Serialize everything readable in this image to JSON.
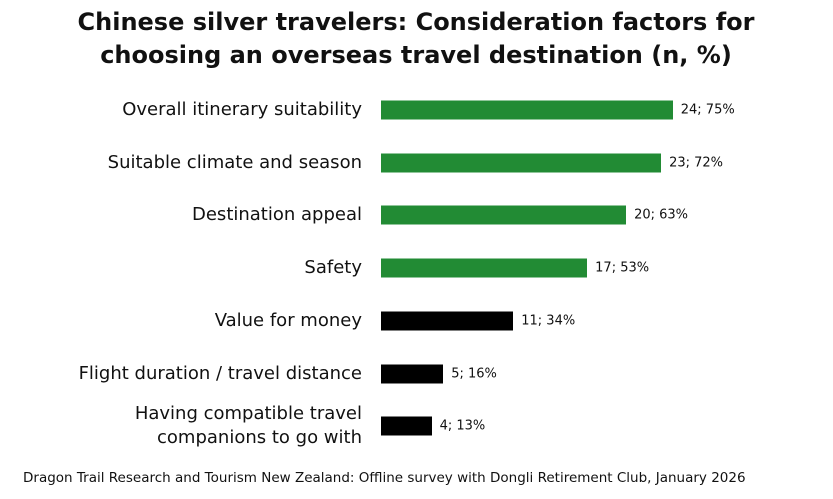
{
  "chart_data": {
    "type": "bar",
    "orientation": "horizontal",
    "title": "Chinese silver travelers: Consideration factors for choosing an overseas travel destination (n, %)",
    "categories": [
      "Overall itinerary suitability",
      "Suitable climate and season",
      "Destination appeal",
      "Safety",
      "Value for money",
      "Flight duration / travel distance",
      "Having compatible travel\ncompanions to go with"
    ],
    "values": [
      75,
      72,
      63,
      53,
      34,
      16,
      13
    ],
    "value_labels": [
      "24; 75%",
      "23; 72%",
      "20; 63%",
      "17; 53%",
      "11; 34%",
      "5; 16%",
      "4; 13%"
    ],
    "colors": [
      "#228b34",
      "#228b34",
      "#228b34",
      "#228b34",
      "#000000",
      "#000000",
      "#000000"
    ],
    "source": "Dragon Trail Research and Tourism New Zealand: Offline survey with Dongli Retirement Club, January 2026"
  }
}
